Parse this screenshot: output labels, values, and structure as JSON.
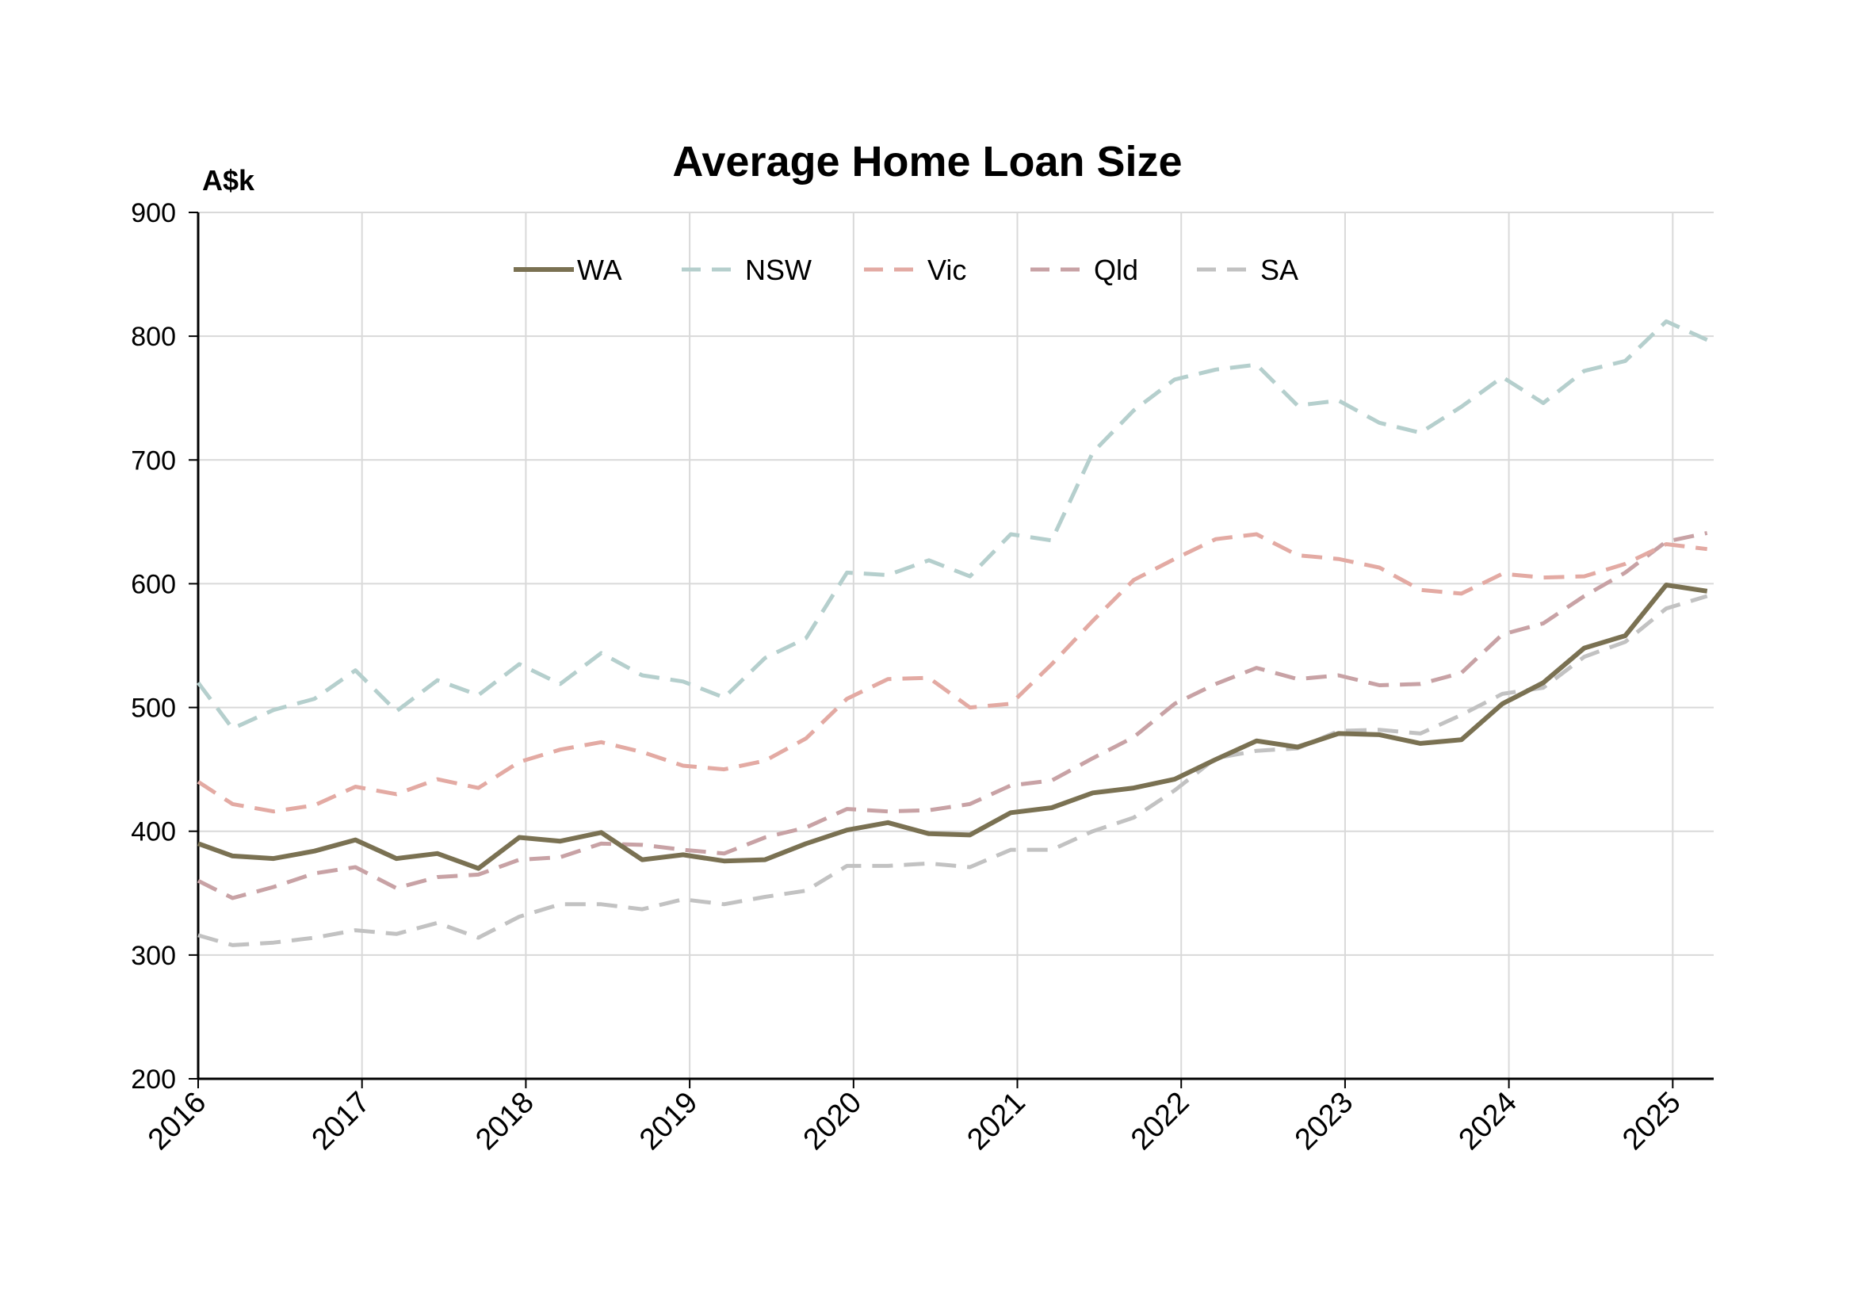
{
  "chart_data": {
    "type": "line",
    "title": "Average Home Loan Size",
    "ylabel": "A$k",
    "xlabel": "",
    "xlim": [
      2016,
      2025.25
    ],
    "ylim": [
      200,
      900
    ],
    "yticks": [
      "200",
      "300",
      "400",
      "500",
      "600",
      "700",
      "800",
      "900"
    ],
    "xticks": [
      "2016",
      "2017",
      "2018",
      "2019",
      "2020",
      "2021",
      "2022",
      "2023",
      "2024",
      "2025"
    ],
    "grid": true,
    "legend": "top",
    "x": [
      2016.0,
      2016.21,
      2016.46,
      2016.71,
      2016.96,
      2017.21,
      2017.46,
      2017.71,
      2017.96,
      2018.21,
      2018.46,
      2018.71,
      2018.96,
      2019.21,
      2019.46,
      2019.71,
      2019.96,
      2020.21,
      2020.46,
      2020.71,
      2020.96,
      2021.21,
      2021.46,
      2021.71,
      2021.96,
      2022.21,
      2022.46,
      2022.71,
      2022.96,
      2023.21,
      2023.46,
      2023.71,
      2023.96,
      2024.21,
      2024.46,
      2024.71,
      2024.96,
      2025.21
    ],
    "series": [
      {
        "name": "WA",
        "color": "#7a7152",
        "dash": "solid",
        "values": [
          390,
          380,
          378,
          384,
          393,
          378,
          382,
          370,
          395,
          392,
          399,
          377,
          381,
          376,
          377,
          390,
          401,
          407,
          398,
          397,
          415,
          419,
          431,
          435,
          442,
          458,
          473,
          468,
          479,
          478,
          471,
          474,
          503,
          520,
          548,
          558,
          599,
          594
        ]
      },
      {
        "name": "NSW",
        "color": "#b5cfcd",
        "dash": "dashed",
        "values": [
          520,
          483,
          498,
          507,
          530,
          497,
          522,
          510,
          535,
          519,
          544,
          526,
          521,
          508,
          540,
          556,
          609,
          607,
          619,
          606,
          640,
          635,
          706,
          740,
          765,
          773,
          777,
          744,
          748,
          730,
          722,
          743,
          767,
          746,
          772,
          780,
          812,
          797
        ]
      },
      {
        "name": "Vic",
        "color": "#e3aaa3",
        "dash": "dashed",
        "values": [
          440,
          422,
          416,
          421,
          436,
          430,
          442,
          435,
          456,
          466,
          472,
          464,
          453,
          450,
          457,
          475,
          507,
          523,
          524,
          500,
          503,
          535,
          570,
          603,
          620,
          636,
          640,
          623,
          620,
          613,
          595,
          592,
          608,
          605,
          606,
          616,
          632,
          628
        ]
      },
      {
        "name": "Qld",
        "color": "#c8a2a5",
        "dash": "dashed",
        "values": [
          360,
          346,
          355,
          366,
          371,
          354,
          363,
          365,
          377,
          379,
          390,
          389,
          385,
          382,
          395,
          403,
          418,
          416,
          417,
          422,
          437,
          441,
          459,
          476,
          503,
          519,
          532,
          523,
          526,
          518,
          519,
          528,
          559,
          568,
          590,
          609,
          634,
          641
        ]
      },
      {
        "name": "SA",
        "color": "#c2c2c2",
        "dash": "dashed",
        "values": [
          316,
          308,
          310,
          314,
          320,
          317,
          326,
          314,
          331,
          341,
          341,
          337,
          345,
          341,
          347,
          352,
          372,
          372,
          374,
          371,
          385,
          385,
          400,
          411,
          433,
          459,
          465,
          467,
          481,
          482,
          479,
          494,
          511,
          516,
          541,
          553,
          580,
          590
        ]
      }
    ]
  }
}
